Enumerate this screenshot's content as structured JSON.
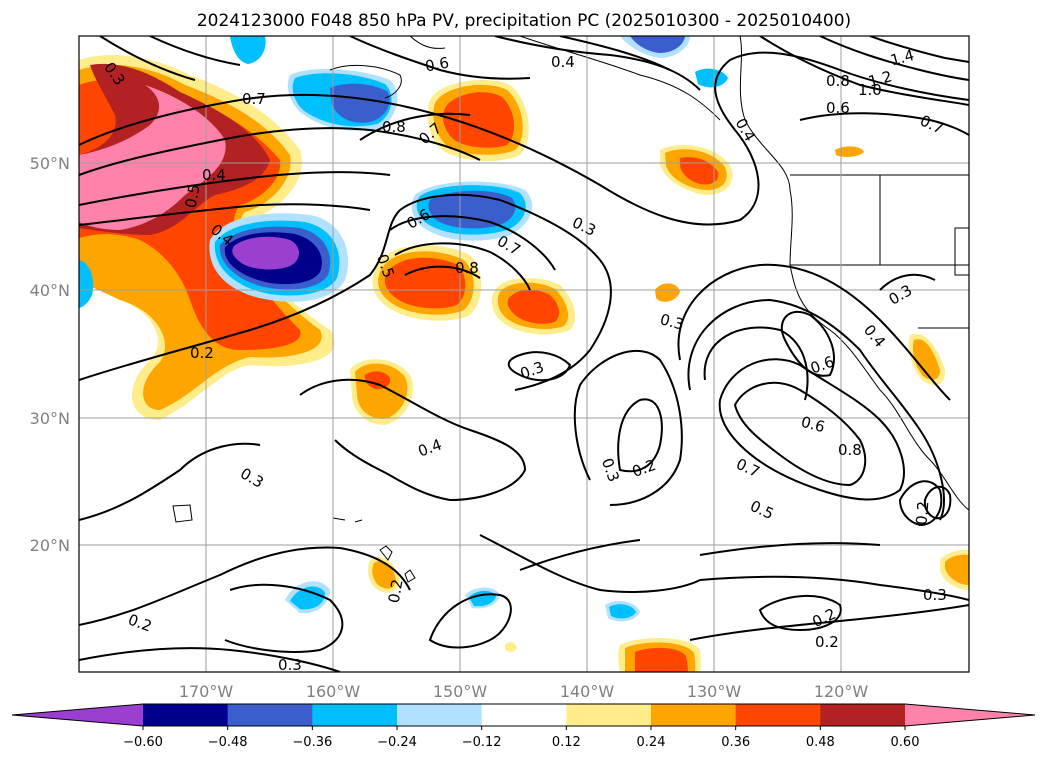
{
  "title": "2024123000 F048 850 hPa PV, precipitation PC (2025010300 - 2025010400)",
  "lat_labels": [
    "50°N",
    "40°N",
    "30°N",
    "20°N"
  ],
  "lon_labels": [
    "170°W",
    "160°W",
    "150°W",
    "140°W",
    "130°W",
    "120°W"
  ],
  "colorbar": {
    "tick_labels": [
      "−0.60",
      "−0.48",
      "−0.36",
      "−0.24",
      "−0.12",
      "0.12",
      "0.24",
      "0.36",
      "0.48",
      "0.60"
    ],
    "colors": [
      "#9a3fd0",
      "#00008b",
      "#3a5fcd",
      "#00bfff",
      "#b0e2ff",
      "#ffffff",
      "#ffec8b",
      "#ffa500",
      "#ff4500",
      "#b22222",
      "#ff82ab"
    ]
  },
  "contour_labels": [
    "0.3",
    "0.7",
    "0.6",
    "0.8",
    "0.7",
    "0.4",
    "0.4",
    "1.4",
    "1.2",
    "1.0",
    "0.8",
    "0.6",
    "0.7",
    "0.4",
    "0.5",
    "0.6",
    "0.4",
    "0.7",
    "0.3",
    "0.8",
    "0.5",
    "0.3",
    "0.3",
    "0.3",
    "0.4",
    "0.6",
    "0.6",
    "0.8",
    "0.7",
    "0.5",
    "0.2",
    "0.3",
    "0.2",
    "0.4",
    "0.3",
    "0.2",
    "0.2",
    "0.3",
    "0.2",
    "0.2",
    "0.3",
    "0.2"
  ]
}
